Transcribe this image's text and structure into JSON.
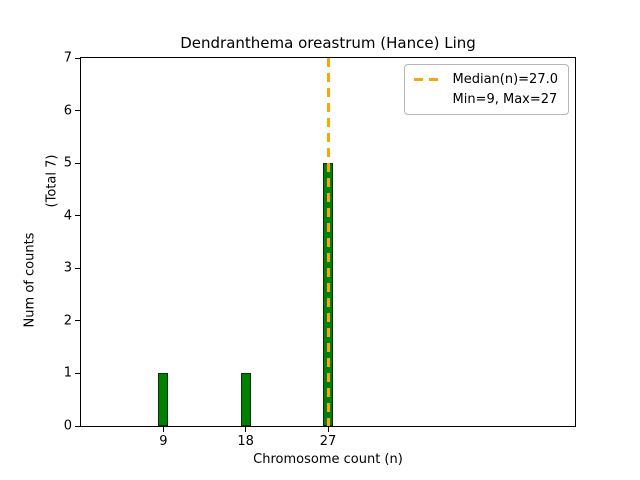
{
  "chart_data": {
    "type": "bar",
    "title": "Dendranthema oreastrum (Hance) Ling",
    "xlabel": "Chromosome count (n)",
    "ylabel": "Num of counts",
    "ylabel_secondary": "(Total 7)",
    "x": [
      9,
      18,
      27
    ],
    "values": [
      1,
      1,
      5
    ],
    "xticks": [
      9,
      18,
      27
    ],
    "yticks": [
      0,
      1,
      2,
      3,
      4,
      5,
      6,
      7
    ],
    "xlim": [
      0,
      54
    ],
    "ylim": [
      0,
      7
    ],
    "grid": false,
    "bar_width_units": 1.1,
    "bar_color": "#008000",
    "bar_edge_color": "#003300",
    "median_line": {
      "x": 27,
      "color": "#ffa500",
      "style": "dashed"
    },
    "legend": {
      "position": "top-right",
      "items": [
        {
          "swatch": "dashed-line",
          "color": "#ffa500",
          "label": "Median(n)=27.0"
        },
        {
          "swatch": "none",
          "label": "Min=9, Max=27"
        }
      ]
    }
  }
}
